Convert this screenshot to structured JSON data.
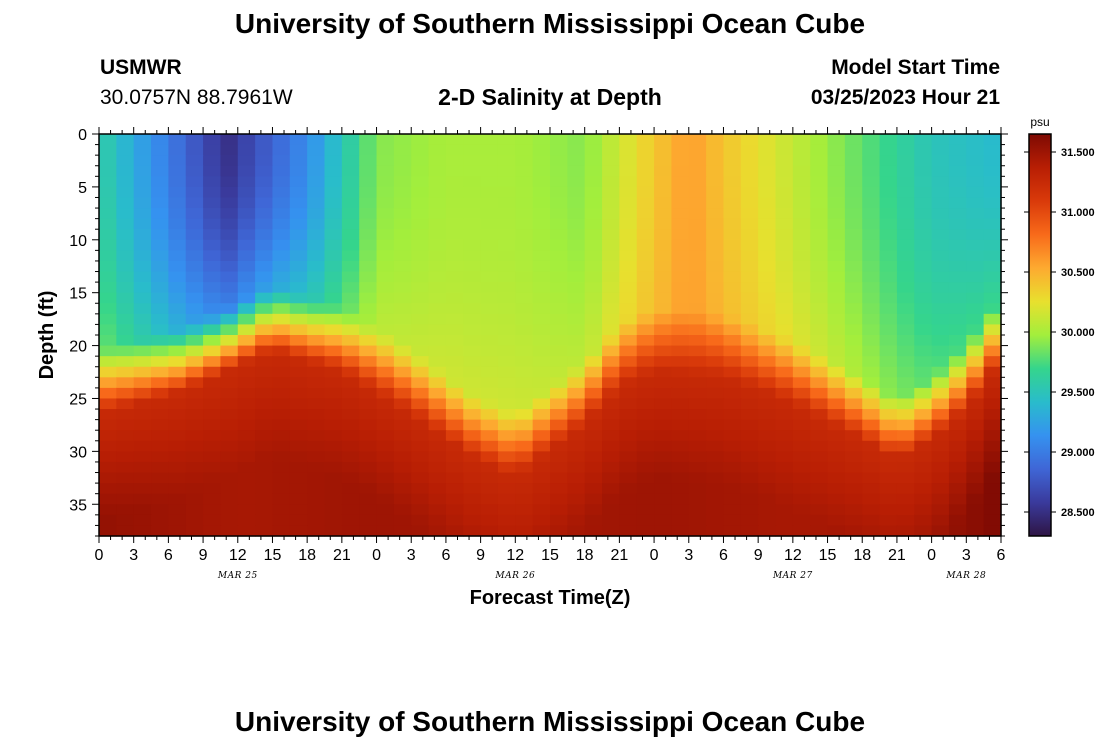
{
  "header": {
    "title": "University of Southern Mississippi Ocean Cube",
    "station": "USMWR",
    "coordinates": "30.0757N  88.7961W",
    "subtitle": "2-D Salinity at Depth",
    "model_start_label": "Model Start Time",
    "model_start_value": "03/25/2023 Hour 21"
  },
  "footer": {
    "title": "University of Southern Mississippi Ocean Cube"
  },
  "chart_data": {
    "type": "heatmap",
    "title": "2-D Salinity at Depth",
    "xlabel": "Forecast Time(Z)",
    "ylabel": "Depth (ft)",
    "units": "psu",
    "x_range_hours": [
      0,
      78
    ],
    "y_range_ft": [
      0,
      38
    ],
    "x_tick_labels": [
      "0",
      "3",
      "6",
      "9",
      "12",
      "15",
      "18",
      "21",
      "0",
      "3",
      "6",
      "9",
      "12",
      "15",
      "18",
      "21",
      "0",
      "3",
      "6",
      "9",
      "12",
      "15",
      "18",
      "21",
      "0",
      "3",
      "6"
    ],
    "y_ticks": [
      0,
      5,
      10,
      15,
      20,
      25,
      30,
      35
    ],
    "date_labels": [
      {
        "label": "MAR 25",
        "hour": 12
      },
      {
        "label": "MAR 26",
        "hour": 36
      },
      {
        "label": "MAR 27",
        "hour": 60
      },
      {
        "label": "MAR 28",
        "hour": 75
      }
    ],
    "colorbar": {
      "min": 28.3,
      "max": 31.65,
      "tick_values": [
        28.5,
        29.0,
        29.5,
        30.0,
        30.5,
        31.0,
        31.5
      ],
      "tick_labels": [
        "28.500",
        "29.000",
        "29.500",
        "30.000",
        "30.500",
        "31.000",
        "31.500"
      ],
      "colors": [
        "#2e1544",
        "#3a3a9c",
        "#3f66d6",
        "#3592f0",
        "#29bccb",
        "#35d58c",
        "#a3ee3c",
        "#e8e02e",
        "#fdaa30",
        "#f86a1a",
        "#d93a0a",
        "#b81e04",
        "#7e0a03"
      ]
    },
    "halocline_depth_ft": [
      {
        "hour": 0,
        "depth": 22.5
      },
      {
        "hour": 7,
        "depth": 20.5
      },
      {
        "hour": 15,
        "depth": 16.5
      },
      {
        "hour": 21,
        "depth": 18.5
      },
      {
        "hour": 27,
        "depth": 22.5
      },
      {
        "hour": 32,
        "depth": 26.5
      },
      {
        "hour": 36,
        "depth": 28.5
      },
      {
        "hour": 39,
        "depth": 26
      },
      {
        "hour": 42,
        "depth": 23.5
      },
      {
        "hour": 45,
        "depth": 20
      },
      {
        "hour": 48,
        "depth": 18.5
      },
      {
        "hour": 54,
        "depth": 19
      },
      {
        "hour": 60,
        "depth": 21.5
      },
      {
        "hour": 66,
        "depth": 25
      },
      {
        "hour": 69,
        "depth": 27
      },
      {
        "hour": 72,
        "depth": 25
      },
      {
        "hour": 75,
        "depth": 22
      },
      {
        "hour": 78,
        "depth": 17.5
      }
    ],
    "surface_salinity_psu": [
      {
        "hour": 0,
        "value": 29.6
      },
      {
        "hour": 6,
        "value": 29.0
      },
      {
        "hour": 11,
        "value": 28.5
      },
      {
        "hour": 18,
        "value": 29.1
      },
      {
        "hour": 24,
        "value": 29.9
      },
      {
        "hour": 30,
        "value": 30.0
      },
      {
        "hour": 36,
        "value": 30.0
      },
      {
        "hour": 42,
        "value": 29.9
      },
      {
        "hour": 47,
        "value": 30.3
      },
      {
        "hour": 51,
        "value": 30.6
      },
      {
        "hour": 54,
        "value": 30.4
      },
      {
        "hour": 60,
        "value": 30.1
      },
      {
        "hour": 66,
        "value": 29.8
      },
      {
        "hour": 72,
        "value": 29.5
      },
      {
        "hour": 78,
        "value": 29.4
      }
    ],
    "bottom_salinity_psu": [
      {
        "hour": 0,
        "value": 31.55
      },
      {
        "hour": 12,
        "value": 31.45
      },
      {
        "hour": 24,
        "value": 31.5
      },
      {
        "hour": 36,
        "value": 31.45
      },
      {
        "hour": 48,
        "value": 31.5
      },
      {
        "hour": 60,
        "value": 31.45
      },
      {
        "hour": 72,
        "value": 31.5
      },
      {
        "hour": 78,
        "value": 31.65
      }
    ]
  }
}
